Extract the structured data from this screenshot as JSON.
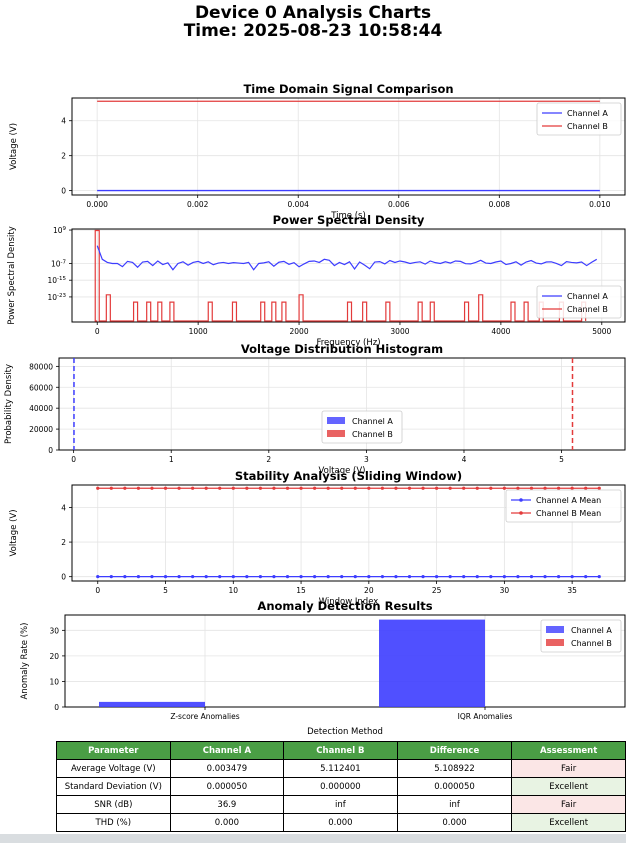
{
  "suptitle": {
    "line1": "Device 0 Analysis Charts",
    "line2": "Time: 2025-08-23 10:58:44"
  },
  "colors": {
    "channel_a": "#3d3dff",
    "channel_b": "#e33b3b",
    "header_green": "#4a9e45",
    "fair_bg": "#fbe6e6",
    "excellent_bg": "#e8f3e3"
  },
  "chart_data": [
    {
      "id": "time",
      "type": "line",
      "title": "Time Domain Signal Comparison",
      "xlabel": "Time (s)",
      "ylabel": "Voltage (V)",
      "xlim": [
        -0.0005,
        0.0105
      ],
      "ylim": [
        -0.25,
        5.3
      ],
      "xticks": [
        "0.000",
        "0.002",
        "0.004",
        "0.006",
        "0.008",
        "0.010"
      ],
      "xtick_values": [
        0,
        0.002,
        0.004,
        0.006,
        0.008,
        0.01
      ],
      "yticks": [
        "0",
        "2",
        "4"
      ],
      "ytick_values": [
        0,
        2,
        4
      ],
      "grid": true,
      "legend": "upper right",
      "series": [
        {
          "name": "Channel A",
          "x": [
            0,
            0.01
          ],
          "y": [
            0.0035,
            0.0035
          ]
        },
        {
          "name": "Channel B",
          "x": [
            0,
            0.01
          ],
          "y": [
            5.112,
            5.112
          ]
        }
      ]
    },
    {
      "id": "psd",
      "type": "line",
      "title": "Power Spectral Density",
      "xlabel": "Frequency (Hz)",
      "ylabel": "Power Spectral Density",
      "yscale": "log",
      "xlim": [
        -250,
        5230
      ],
      "ylim_log10": [
        -35,
        9.5
      ],
      "xticks": [
        "0",
        "1000",
        "2000",
        "3000",
        "4000",
        "5000"
      ],
      "xtick_values": [
        0,
        1000,
        2000,
        3000,
        4000,
        5000
      ],
      "ytick_log10": [
        9,
        -7,
        -15,
        -23
      ],
      "grid": true,
      "legend": "lower right",
      "series": [
        {
          "name": "Channel A",
          "x": [
            0,
            50,
            100,
            150,
            200,
            250,
            300,
            350,
            400,
            450,
            500,
            550,
            600,
            650,
            700,
            750,
            800,
            850,
            900,
            950,
            1000,
            1050,
            1100,
            1150,
            1200,
            1250,
            1300,
            1350,
            1400,
            1450,
            1500,
            1550,
            1600,
            1650,
            1700,
            1750,
            1800,
            1850,
            1900,
            1950,
            2000,
            2050,
            2100,
            2150,
            2200,
            2250,
            2300,
            2350,
            2400,
            2450,
            2500,
            2550,
            2600,
            2650,
            2700,
            2750,
            2800,
            2850,
            2900,
            2950,
            3000,
            3050,
            3100,
            3150,
            3200,
            3250,
            3300,
            3350,
            3400,
            3450,
            3500,
            3550,
            3600,
            3650,
            3700,
            3750,
            3800,
            3850,
            3900,
            3950,
            4000,
            4050,
            4100,
            4150,
            4200,
            4250,
            4300,
            4350,
            4400,
            4450,
            4500,
            4550,
            4600,
            4650,
            4700,
            4750,
            4800,
            4850,
            4900,
            4950
          ],
          "log10_y": [
            1.5,
            -5,
            -6.5,
            -7,
            -7,
            -8.5,
            -6,
            -6.5,
            -8.8,
            -6.3,
            -6,
            -8,
            -5.8,
            -7.5,
            -6.7,
            -10,
            -7,
            -6.2,
            -7.8,
            -6.5,
            -6,
            -7,
            -6.2,
            -7.6,
            -6.8,
            -6.5,
            -7,
            -6.6,
            -6.8,
            -7,
            -6.5,
            -10,
            -7,
            -6.7,
            -6.2,
            -8.3,
            -6.4,
            -6,
            -7.4,
            -6.6,
            -8.6,
            -7.2,
            -6,
            -5.8,
            -6.5,
            -5,
            -5.5,
            -8,
            -6.5,
            -7.5,
            -6.2,
            -9.6,
            -6.3,
            -7.8,
            -9.5,
            -6.3,
            -6.1,
            -7.2,
            -5.6,
            -6.5,
            -5.8,
            -6.3,
            -7,
            -6.5,
            -6.2,
            -7.3,
            -5.8,
            -6.6,
            -7,
            -6.2,
            -6.8,
            -5.8,
            -6,
            -7.1,
            -7.2,
            -6.5,
            -5.5,
            -6.8,
            -7,
            -6.3,
            -5.8,
            -7.5,
            -7,
            -6.2,
            -7.8,
            -6.3,
            -5.6,
            -6.8,
            -7.2,
            -6.3,
            -6.2,
            -7,
            -8,
            -6.1,
            -6.5,
            -6.7,
            -6.3,
            -8,
            -6.4,
            -5
          ]
        },
        {
          "name": "Channel B",
          "spikes": [
            {
              "x": 0,
              "log10_y": 8.8
            },
            {
              "x": 110,
              "log10_y": -22
            },
            {
              "x": 380,
              "log10_y": -25.5
            },
            {
              "x": 510,
              "log10_y": -25.5
            },
            {
              "x": 620,
              "log10_y": -25.5
            },
            {
              "x": 740,
              "log10_y": -25.5
            },
            {
              "x": 1120,
              "log10_y": -25.5
            },
            {
              "x": 1360,
              "log10_y": -25.5
            },
            {
              "x": 1640,
              "log10_y": -25.5
            },
            {
              "x": 1750,
              "log10_y": -25.5
            },
            {
              "x": 1850,
              "log10_y": -25.5
            },
            {
              "x": 2020,
              "log10_y": -22
            },
            {
              "x": 2500,
              "log10_y": -25.5
            },
            {
              "x": 2650,
              "log10_y": -25.5
            },
            {
              "x": 2880,
              "log10_y": -25.5
            },
            {
              "x": 3200,
              "log10_y": -25.5
            },
            {
              "x": 3320,
              "log10_y": -25.5
            },
            {
              "x": 3660,
              "log10_y": -25.5
            },
            {
              "x": 3800,
              "log10_y": -22
            },
            {
              "x": 4120,
              "log10_y": -25.5
            },
            {
              "x": 4250,
              "log10_y": -25.5
            },
            {
              "x": 4400,
              "log10_y": -25.5
            },
            {
              "x": 4600,
              "log10_y": -25.5
            },
            {
              "x": 4820,
              "log10_y": -25.5
            }
          ]
        }
      ]
    },
    {
      "id": "hist",
      "type": "histogram",
      "title": "Voltage Distribution Histogram",
      "xlabel": "Voltage (V)",
      "ylabel": "Probability Density",
      "xlim": [
        -0.15,
        5.65
      ],
      "ylim": [
        0,
        88000
      ],
      "xticks": [
        "0",
        "1",
        "2",
        "3",
        "4",
        "5"
      ],
      "xtick_values": [
        0,
        1,
        2,
        3,
        4,
        5
      ],
      "yticks": [
        "0",
        "20000",
        "40000",
        "60000",
        "80000"
      ],
      "ytick_values": [
        0,
        20000,
        40000,
        60000,
        80000
      ],
      "grid": true,
      "legend": "lower center",
      "series": [
        {
          "name": "Channel A",
          "mean_line": 0.0035
        },
        {
          "name": "Channel B",
          "mean_line": 5.112
        }
      ]
    },
    {
      "id": "stability",
      "type": "line",
      "title": "Stability Analysis (Sliding Window)",
      "xlabel": "Window Index",
      "ylabel": "Voltage (V)",
      "xlim": [
        -1.9,
        38.9
      ],
      "ylim": [
        -0.25,
        5.3
      ],
      "xticks": [
        "0",
        "5",
        "10",
        "15",
        "20",
        "25",
        "30",
        "35"
      ],
      "xtick_values": [
        0,
        5,
        10,
        15,
        20,
        25,
        30,
        35
      ],
      "yticks": [
        "0",
        "2",
        "4"
      ],
      "ytick_values": [
        0,
        2,
        4
      ],
      "grid": true,
      "legend": "upper right",
      "series": [
        {
          "name": "Channel A Mean",
          "start": 0,
          "end": 37,
          "value": 0.0035
        },
        {
          "name": "Channel B Mean",
          "start": 0,
          "end": 37,
          "value": 5.112
        }
      ]
    },
    {
      "id": "anomaly",
      "type": "bar",
      "title": "Anomaly Detection Results",
      "xlabel": "Detection Method",
      "ylabel": "Anomaly Rate (%)",
      "categories": [
        "Z-score Anomalies",
        "IQR Anomalies"
      ],
      "ylim": [
        0,
        36
      ],
      "yticks": [
        "0",
        "10",
        "20",
        "30"
      ],
      "ytick_values": [
        0,
        10,
        20,
        30
      ],
      "grid": true,
      "legend": "upper right",
      "series": [
        {
          "name": "Channel A",
          "values": [
            2.0,
            34.2
          ]
        },
        {
          "name": "Channel B",
          "values": [
            0,
            0
          ]
        }
      ]
    }
  ],
  "table": {
    "headers": [
      "Parameter",
      "Channel A",
      "Channel B",
      "Difference",
      "Assessment"
    ],
    "rows": [
      [
        "Average Voltage (V)",
        "0.003479",
        "5.112401",
        "5.108922",
        "Fair"
      ],
      [
        "Standard Deviation (V)",
        "0.000050",
        "0.000000",
        "0.000050",
        "Excellent"
      ],
      [
        "SNR (dB)",
        "36.9",
        "inf",
        "inf",
        "Fair"
      ],
      [
        "THD (%)",
        "0.000",
        "0.000",
        "0.000",
        "Excellent"
      ]
    ]
  }
}
